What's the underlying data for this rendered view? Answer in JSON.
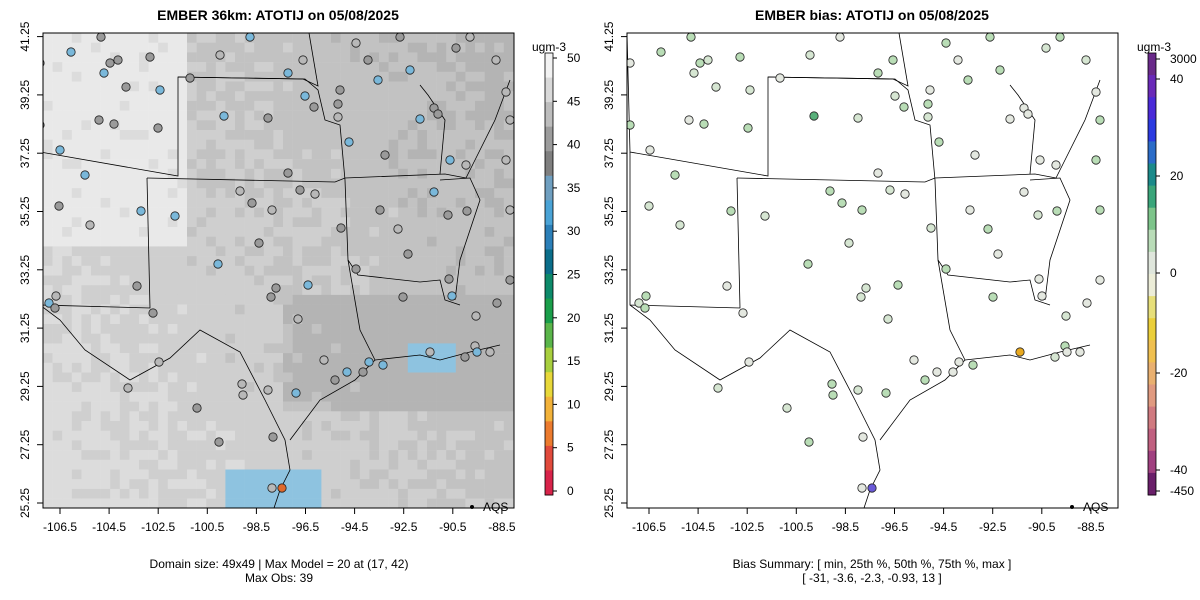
{
  "left_panel": {
    "title": "EMBER 36km: ATOTIJ on 05/08/2025",
    "legend_label": "AQS",
    "footer_line1": "Domain size: 49x49 | Max Model = 20 at (17, 42)",
    "footer_line2": "Max Obs: 39",
    "colorbar": {
      "unit": "ugm-3",
      "ticks": [
        "0",
        "5",
        "10",
        "15",
        "20",
        "25",
        "30",
        "35",
        "40",
        "45",
        "50"
      ],
      "colors": [
        "#f2f2f2",
        "#d9d9d9",
        "#bdbdbd",
        "#9c9c9c",
        "#7f7f7f",
        "#6f9fc0",
        "#4aa3d6",
        "#2b7fb8",
        "#0b6e8a",
        "#0d8a6a",
        "#1a9e4a",
        "#5ab54a",
        "#a8cf3e",
        "#e8d83a",
        "#f2b23a",
        "#ec7b2e",
        "#e14a3c",
        "#d8234a"
      ]
    }
  },
  "right_panel": {
    "title": "EMBER bias: ATOTIJ on 05/08/2025",
    "legend_label": "AQS",
    "footer_line1": "Bias Summary: [ min, 25th %, 50th %, 75th %, max ]",
    "footer_line2": "[ -31,   -3.6,   -2.3,   -0.93,   13 ]",
    "colorbar": {
      "unit": "ugm-3",
      "ticks": [
        "3000",
        "40",
        "20",
        "0",
        "-20",
        "-40",
        "-450"
      ],
      "colors": [
        "#6a1f6a",
        "#a04080",
        "#c06080",
        "#d07a80",
        "#e09a80",
        "#e9b070",
        "#f0c050",
        "#ebcf3a",
        "#e7df7a",
        "#ecedd8",
        "#dfe6dc",
        "#b9dcb8",
        "#7dc48a",
        "#3aa57a",
        "#1b8a8a",
        "#2b6cc8",
        "#2b3ae0",
        "#4a2ad8",
        "#6a2ab8",
        "#6a2a8a"
      ]
    }
  },
  "map": {
    "x_ticks": [
      "-106.5",
      "-104.5",
      "-102.5",
      "-100.5",
      "-98.5",
      "-96.5",
      "-94.5",
      "-92.5",
      "-90.5",
      "-88.5"
    ],
    "y_ticks": [
      "25.25",
      "27.25",
      "29.25",
      "31.25",
      "33.25",
      "35.25",
      "37.25",
      "39.25",
      "41.25"
    ]
  }
}
